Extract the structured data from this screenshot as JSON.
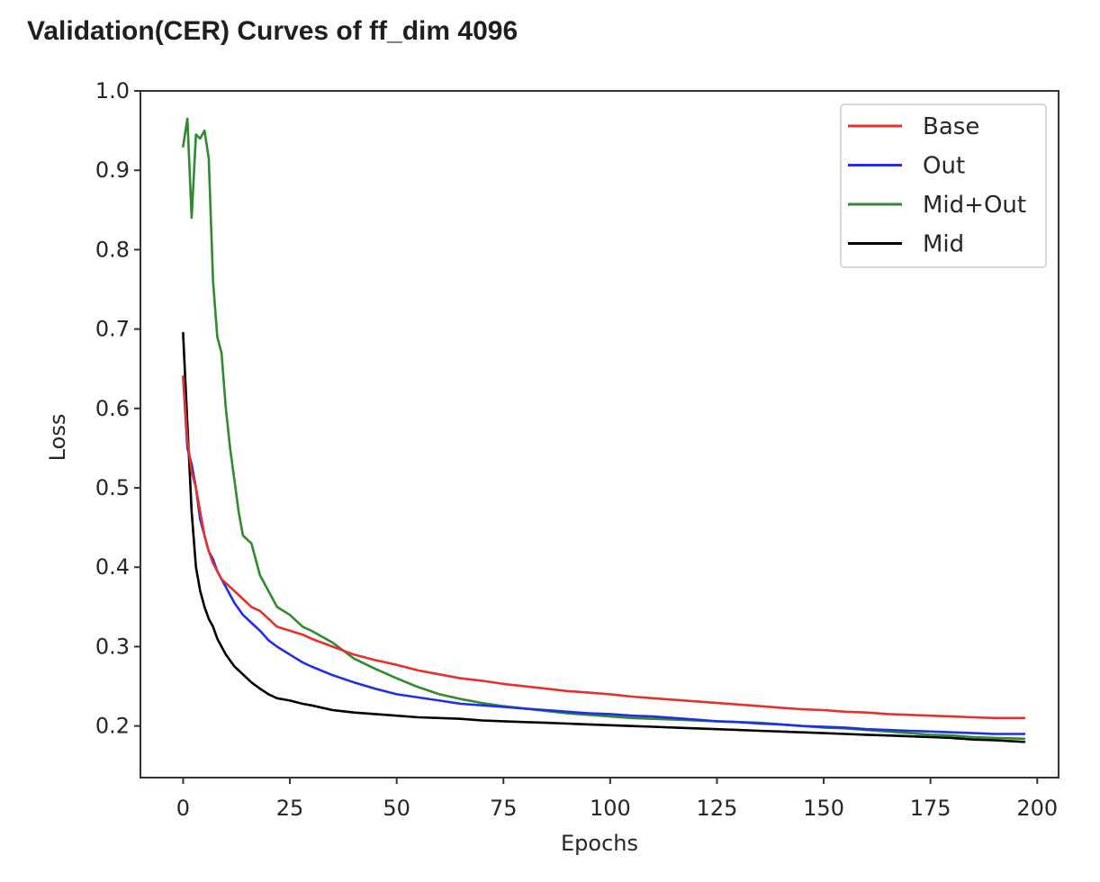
{
  "page": {
    "heading": "Validation(CER) Curves of ff_dim 4096"
  },
  "chart_data": {
    "type": "line",
    "title": "",
    "xlabel": "Epochs",
    "ylabel": "Loss",
    "xlim": [
      -10,
      205
    ],
    "ylim": [
      0.135,
      1.0
    ],
    "xticks": [
      0,
      25,
      50,
      75,
      100,
      125,
      150,
      175,
      200
    ],
    "yticks": [
      0.2,
      0.3,
      0.4,
      0.5,
      0.6,
      0.7,
      0.8,
      0.9,
      1.0
    ],
    "xtick_labels": [
      "0",
      "25",
      "50",
      "75",
      "100",
      "125",
      "150",
      "175",
      "200"
    ],
    "ytick_labels": [
      "0.2",
      "0.3",
      "0.4",
      "0.5",
      "0.6",
      "0.7",
      "0.8",
      "0.9",
      "1.0"
    ],
    "grid": false,
    "legend_position": "top-right",
    "series": [
      {
        "name": "Base",
        "color": "#e8302a",
        "x": [
          0,
          1,
          2,
          3,
          4,
          5,
          6,
          7,
          8,
          9,
          10,
          12,
          14,
          16,
          18,
          20,
          22,
          25,
          28,
          30,
          35,
          40,
          45,
          50,
          55,
          60,
          65,
          70,
          75,
          80,
          85,
          90,
          95,
          100,
          105,
          110,
          115,
          120,
          125,
          130,
          135,
          140,
          145,
          150,
          155,
          160,
          165,
          170,
          175,
          180,
          185,
          190,
          197
        ],
        "y": [
          0.64,
          0.56,
          0.52,
          0.5,
          0.47,
          0.44,
          0.42,
          0.405,
          0.395,
          0.385,
          0.38,
          0.37,
          0.36,
          0.35,
          0.345,
          0.335,
          0.325,
          0.32,
          0.315,
          0.31,
          0.3,
          0.29,
          0.283,
          0.277,
          0.27,
          0.265,
          0.26,
          0.257,
          0.253,
          0.25,
          0.247,
          0.244,
          0.242,
          0.24,
          0.237,
          0.235,
          0.233,
          0.231,
          0.229,
          0.227,
          0.225,
          0.223,
          0.221,
          0.22,
          0.218,
          0.217,
          0.215,
          0.214,
          0.213,
          0.212,
          0.211,
          0.21,
          0.21
        ]
      },
      {
        "name": "Out",
        "color": "#1f2ee8",
        "x": [
          0,
          1,
          2,
          3,
          4,
          5,
          6,
          7,
          8,
          9,
          10,
          12,
          14,
          16,
          18,
          20,
          22,
          25,
          28,
          30,
          35,
          40,
          45,
          50,
          55,
          60,
          65,
          70,
          75,
          80,
          85,
          90,
          95,
          100,
          105,
          110,
          115,
          120,
          125,
          130,
          135,
          140,
          145,
          150,
          155,
          160,
          165,
          170,
          175,
          180,
          185,
          190,
          197
        ],
        "y": [
          0.64,
          0.55,
          0.53,
          0.5,
          0.46,
          0.44,
          0.42,
          0.41,
          0.395,
          0.385,
          0.375,
          0.355,
          0.34,
          0.33,
          0.32,
          0.308,
          0.3,
          0.29,
          0.28,
          0.275,
          0.264,
          0.255,
          0.247,
          0.24,
          0.236,
          0.232,
          0.228,
          0.226,
          0.224,
          0.222,
          0.22,
          0.218,
          0.216,
          0.215,
          0.213,
          0.212,
          0.21,
          0.208,
          0.206,
          0.205,
          0.203,
          0.202,
          0.2,
          0.199,
          0.198,
          0.196,
          0.195,
          0.194,
          0.193,
          0.192,
          0.191,
          0.19,
          0.19
        ]
      },
      {
        "name": "Mid+Out",
        "color": "#2e8b2e",
        "x": [
          0,
          1,
          2,
          3,
          4,
          5,
          6,
          7,
          8,
          9,
          10,
          11,
          12,
          13,
          14,
          16,
          18,
          20,
          22,
          25,
          28,
          30,
          35,
          40,
          45,
          50,
          55,
          60,
          65,
          70,
          75,
          80,
          85,
          90,
          95,
          100,
          105,
          110,
          115,
          120,
          125,
          130,
          135,
          140,
          145,
          150,
          155,
          160,
          165,
          170,
          175,
          180,
          185,
          190,
          197
        ],
        "y": [
          0.93,
          0.965,
          0.84,
          0.945,
          0.94,
          0.95,
          0.915,
          0.76,
          0.69,
          0.67,
          0.6,
          0.55,
          0.51,
          0.47,
          0.44,
          0.43,
          0.39,
          0.37,
          0.35,
          0.34,
          0.325,
          0.32,
          0.305,
          0.285,
          0.272,
          0.26,
          0.249,
          0.24,
          0.234,
          0.229,
          0.225,
          0.222,
          0.219,
          0.216,
          0.214,
          0.212,
          0.21,
          0.209,
          0.208,
          0.207,
          0.206,
          0.205,
          0.204,
          0.202,
          0.2,
          0.198,
          0.197,
          0.195,
          0.193,
          0.191,
          0.189,
          0.188,
          0.186,
          0.185,
          0.184
        ]
      },
      {
        "name": "Mid",
        "color": "#000000",
        "x": [
          0,
          1,
          2,
          3,
          4,
          5,
          6,
          7,
          8,
          9,
          10,
          12,
          14,
          16,
          18,
          20,
          22,
          25,
          28,
          30,
          35,
          40,
          45,
          50,
          55,
          60,
          65,
          70,
          75,
          80,
          85,
          90,
          95,
          100,
          105,
          110,
          115,
          120,
          125,
          130,
          135,
          140,
          145,
          150,
          155,
          160,
          165,
          170,
          175,
          180,
          185,
          190,
          197
        ],
        "y": [
          0.695,
          0.58,
          0.47,
          0.4,
          0.37,
          0.35,
          0.335,
          0.325,
          0.31,
          0.3,
          0.29,
          0.275,
          0.265,
          0.255,
          0.247,
          0.24,
          0.235,
          0.232,
          0.228,
          0.226,
          0.22,
          0.217,
          0.215,
          0.213,
          0.211,
          0.21,
          0.209,
          0.207,
          0.206,
          0.205,
          0.204,
          0.203,
          0.202,
          0.201,
          0.2,
          0.199,
          0.198,
          0.197,
          0.196,
          0.195,
          0.194,
          0.193,
          0.192,
          0.191,
          0.19,
          0.189,
          0.188,
          0.187,
          0.186,
          0.185,
          0.183,
          0.182,
          0.18
        ]
      }
    ]
  }
}
